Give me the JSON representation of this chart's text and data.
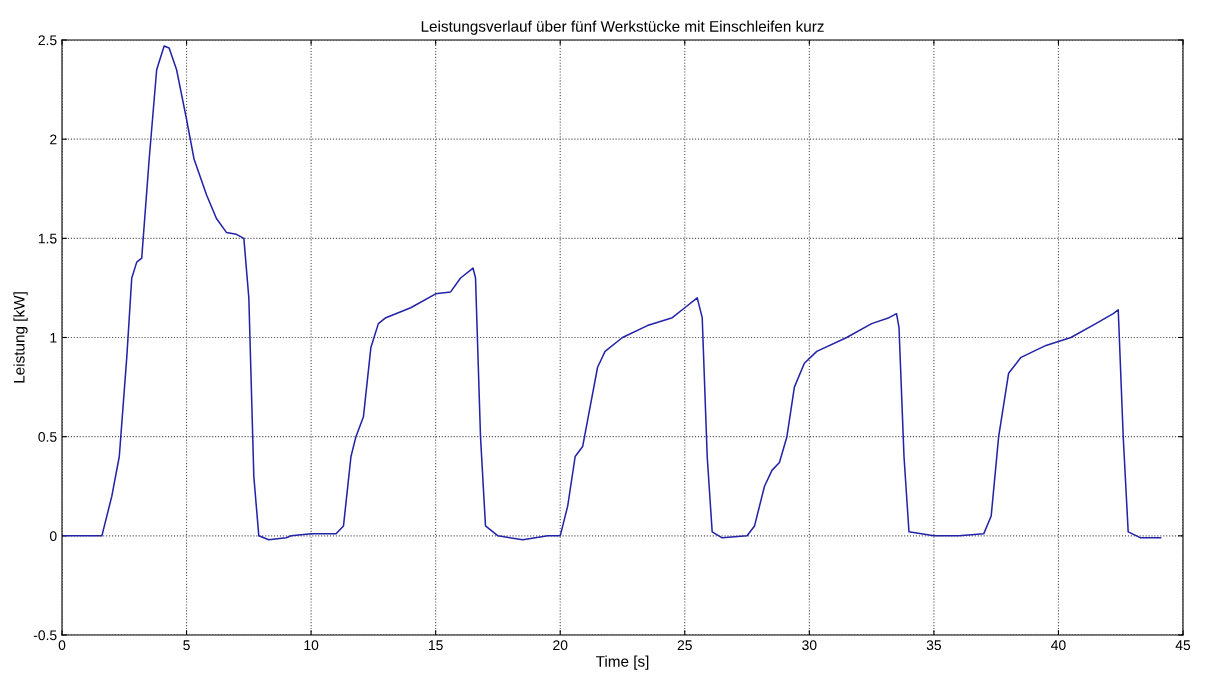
{
  "chart_data": {
    "type": "line",
    "title": "Leistungsverlauf über fünf Werkstücke mit Einschleifen kurz",
    "xlabel": "Time [s]",
    "ylabel": "Leistung [kW]",
    "xlim": [
      0,
      45
    ],
    "ylim": [
      -0.5,
      2.5
    ],
    "xticks": [
      0,
      5,
      10,
      15,
      20,
      25,
      30,
      35,
      40,
      45
    ],
    "yticks": [
      -0.5,
      0,
      0.5,
      1,
      1.5,
      2,
      2.5
    ],
    "grid": true,
    "line_style": "solid",
    "marker": "none",
    "series": [
      {
        "color": "#2323a8",
        "x": [
          0,
          1.6,
          2.0,
          2.3,
          2.6,
          2.8,
          3.0,
          3.2,
          3.5,
          3.8,
          4.1,
          4.3,
          4.6,
          5.0,
          5.3,
          5.8,
          6.2,
          6.6,
          7.0,
          7.3,
          7.5,
          7.7,
          7.9,
          8.3,
          9.0,
          9.2,
          10,
          11,
          11.3,
          11.6,
          11.8,
          12.1,
          12.4,
          12.7,
          13,
          14,
          15,
          15.6,
          16.0,
          16.5,
          16.6,
          16.8,
          17.0,
          17.5,
          18.5,
          19.5,
          20,
          20.3,
          20.6,
          20.9,
          21.2,
          21.5,
          21.8,
          22.5,
          23.5,
          24.5,
          25.0,
          25.5,
          25.7,
          25.9,
          26.1,
          26.5,
          27.5,
          27.8,
          28.2,
          28.5,
          28.8,
          29.1,
          29.4,
          29.8,
          30.3,
          31.5,
          32.5,
          33.2,
          33.5,
          33.6,
          33.8,
          34.0,
          35,
          36,
          37.0,
          37.3,
          37.6,
          38.0,
          38.5,
          39.5,
          40.5,
          41.5,
          42.2,
          42.4,
          42.6,
          42.8,
          43.3,
          44.1
        ],
        "values": [
          0,
          0,
          0.2,
          0.4,
          0.9,
          1.3,
          1.38,
          1.4,
          1.9,
          2.35,
          2.47,
          2.46,
          2.35,
          2.1,
          1.9,
          1.72,
          1.6,
          1.53,
          1.52,
          1.5,
          1.2,
          0.3,
          0.0,
          -0.02,
          -0.01,
          0.0,
          0.01,
          0.01,
          0.05,
          0.4,
          0.5,
          0.6,
          0.95,
          1.07,
          1.1,
          1.15,
          1.22,
          1.23,
          1.3,
          1.35,
          1.3,
          0.5,
          0.05,
          0.0,
          -0.02,
          0,
          0.0,
          0.15,
          0.4,
          0.45,
          0.65,
          0.85,
          0.93,
          1.0,
          1.06,
          1.1,
          1.15,
          1.2,
          1.1,
          0.4,
          0.02,
          -0.01,
          0,
          0.05,
          0.25,
          0.33,
          0.37,
          0.5,
          0.75,
          0.87,
          0.93,
          1.0,
          1.07,
          1.1,
          1.12,
          1.05,
          0.4,
          0.02,
          0.0,
          0.0,
          0.01,
          0.1,
          0.5,
          0.82,
          0.9,
          0.96,
          1.0,
          1.07,
          1.12,
          1.14,
          0.5,
          0.02,
          -0.01,
          -0.01
        ]
      }
    ]
  }
}
